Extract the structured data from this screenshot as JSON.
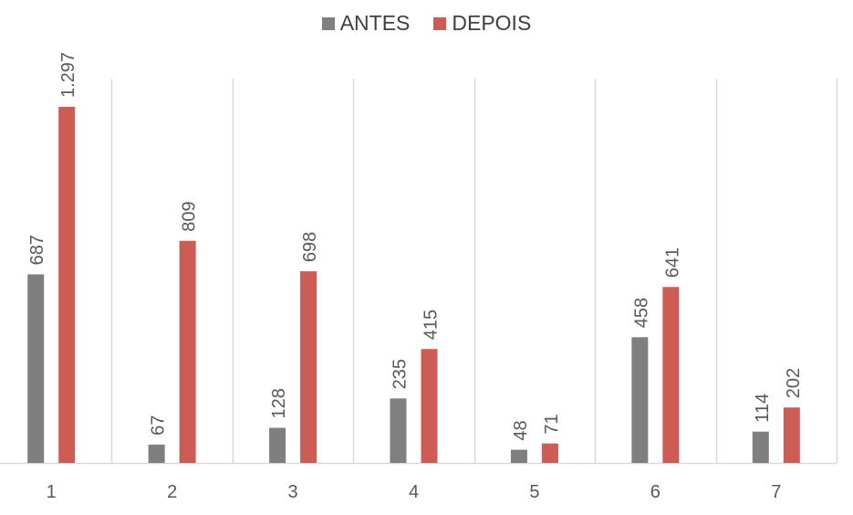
{
  "chart_data": {
    "type": "bar",
    "categories": [
      "1",
      "2",
      "3",
      "4",
      "5",
      "6",
      "7"
    ],
    "series": [
      {
        "name": "ANTES",
        "color": "#7f7f7f",
        "values": [
          687,
          67,
          128,
          235,
          48,
          458,
          114
        ],
        "labels": [
          "687",
          "67",
          "128",
          "235",
          "48",
          "458",
          "114"
        ]
      },
      {
        "name": "DEPOIS",
        "color": "#cd5c54",
        "values": [
          1297,
          809,
          698,
          415,
          71,
          641,
          202
        ],
        "labels": [
          "1.297",
          "809",
          "698",
          "415",
          "71",
          "641",
          "202"
        ]
      }
    ],
    "ylim": [
      0,
      1400
    ],
    "grid": "vertical separators between categories",
    "legend_position": "top-center",
    "data_labels": "vertical, above bars"
  }
}
